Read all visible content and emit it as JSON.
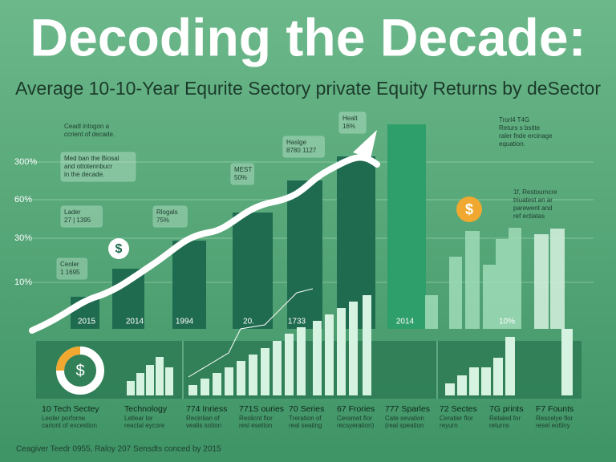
{
  "header": {
    "title": "Decoding the Decade:",
    "subtitle": "Average 10-10-Year Equrite Sectory private Equity Returns by deSector"
  },
  "axis": {
    "ticks": [
      "300%",
      "60%",
      "30%",
      "10%"
    ]
  },
  "bar_labels": [
    "2015",
    "2014",
    "1994",
    "20.",
    "1733",
    "2014",
    "10%"
  ],
  "callouts": [
    {
      "lines": [
        "Ceadl intogon a",
        "ccrient of decade."
      ]
    },
    {
      "lines": [
        "Med ban the Biosal",
        "and ottotennbucr",
        "in the decade."
      ]
    },
    {
      "lines": [
        "Lader",
        "27 | 1395"
      ]
    },
    {
      "lines": [
        "Ceoler",
        "1 1695"
      ]
    },
    {
      "lines": [
        "Rlogals",
        "75%"
      ]
    },
    {
      "lines": [
        "MEST",
        "50%"
      ]
    },
    {
      "lines": [
        "Haslge",
        "8780 1127"
      ]
    },
    {
      "lines": [
        "Healt",
        "16%"
      ]
    },
    {
      "lines": [
        "Trorl4 T4G",
        "Returs s bsitte",
        "raler fnde ercinage",
        "equation."
      ]
    },
    {
      "lines": [
        "1f, Restourncre",
        "triuatest an ar",
        "parewent and",
        "ref ectiatas"
      ]
    }
  ],
  "bottom": [
    {
      "title": "10 Tech Sectey",
      "lines": [
        "Leoler porforne",
        "cariont of excestion"
      ]
    },
    {
      "title": "Technology",
      "lines": [
        "Letlear lor",
        "reactal eycore"
      ]
    },
    {
      "title": "774 Inriess",
      "lines": [
        "Recinlian of",
        "vealis sotion"
      ]
    },
    {
      "title": "771S ouries",
      "lines": [
        "Reslicnt flor",
        "resl esetton"
      ]
    },
    {
      "title": "70 Series",
      "lines": [
        "Treration of",
        "real seating"
      ]
    },
    {
      "title": "67 Frories",
      "lines": [
        "Ceramet flor",
        "recsyeration)"
      ]
    },
    {
      "title": "777 Sparles",
      "lines": [
        "Cate sevation",
        "(real speation"
      ]
    },
    {
      "title": "72 Sectes",
      "lines": [
        "Ceratier flor",
        "reyurn"
      ]
    },
    {
      "title": "7G prints",
      "lines": [
        "Retaled for",
        "returns"
      ]
    },
    {
      "title": "F7 Founts",
      "lines": [
        "Rescelye flor",
        "resel eotliny"
      ]
    }
  ],
  "footnote": "Ceagiver Teedr 0955, Raloy 207 Sensdts conced by 2015"
}
